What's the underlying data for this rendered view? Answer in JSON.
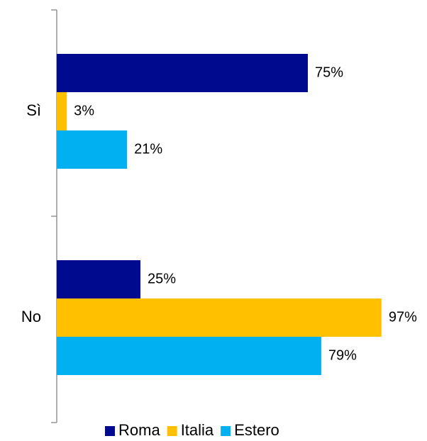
{
  "chart_data": {
    "type": "bar",
    "orientation": "horizontal",
    "categories": [
      "Sì",
      "No"
    ],
    "series": [
      {
        "name": "Roma",
        "color": "#000a8f",
        "values": [
          75,
          25
        ],
        "labels": [
          "75%",
          "25%"
        ]
      },
      {
        "name": "Italia",
        "color": "#ffc000",
        "values": [
          3,
          97
        ],
        "labels": [
          "3%",
          "97%"
        ]
      },
      {
        "name": "Estero",
        "color": "#00b0f0",
        "values": [
          21,
          79
        ],
        "labels": [
          "21%",
          "79%"
        ]
      }
    ],
    "xlim": [
      0,
      100
    ],
    "grid": false,
    "legend_position": "bottom"
  }
}
